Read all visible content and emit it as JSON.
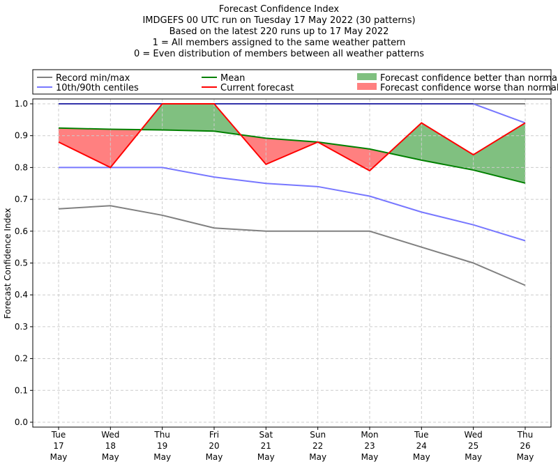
{
  "chart_data": {
    "type": "line",
    "title_lines": [
      "Forecast Confidence Index",
      "IMDGEFS 00 UTC run on Tuesday 17 May 2022 (30 patterns)",
      "Based on the latest 220 runs up to 17 May 2022",
      "1 = All members assigned to the same weather pattern",
      "0 = Even distribution of members between all weather patterns"
    ],
    "ylabel": "Forecast Confidence Index",
    "ylim": [
      0,
      1
    ],
    "yticks": [
      "0.0",
      "0.1",
      "0.2",
      "0.3",
      "0.4",
      "0.5",
      "0.6",
      "0.7",
      "0.8",
      "0.9",
      "1.0"
    ],
    "categories": [
      [
        "Tue",
        "17",
        "May"
      ],
      [
        "Wed",
        "18",
        "May"
      ],
      [
        "Thu",
        "19",
        "May"
      ],
      [
        "Fri",
        "20",
        "May"
      ],
      [
        "Sat",
        "21",
        "May"
      ],
      [
        "Sun",
        "22",
        "May"
      ],
      [
        "Mon",
        "23",
        "May"
      ],
      [
        "Tue",
        "24",
        "May"
      ],
      [
        "Wed",
        "25",
        "May"
      ],
      [
        "Thu",
        "26",
        "May"
      ]
    ],
    "grid": true,
    "legend_position": "top",
    "series": [
      {
        "name": "Record min/max",
        "color": "#808080",
        "min": [
          0.67,
          0.68,
          0.65,
          0.61,
          0.6,
          0.6,
          0.6,
          0.55,
          0.5,
          0.43
        ],
        "max": [
          1,
          1,
          1,
          1,
          1,
          1,
          1,
          1,
          1,
          1
        ]
      },
      {
        "name": "10th/90th centiles",
        "color": "#7777ff",
        "p10": [
          0.8,
          0.8,
          0.8,
          0.77,
          0.75,
          0.74,
          0.71,
          0.66,
          0.62,
          0.57
        ],
        "p90": [
          1,
          1,
          1,
          1,
          1,
          1,
          1,
          1,
          1,
          0.94
        ]
      },
      {
        "name": "Mean",
        "color": "#008000",
        "values": [
          0.924,
          0.92,
          0.918,
          0.914,
          0.892,
          0.88,
          0.858,
          0.823,
          0.792,
          0.751
        ]
      },
      {
        "name": "Current forecast",
        "color": "#ff0000",
        "values": [
          0.88,
          0.8,
          1.0,
          1.0,
          0.81,
          0.88,
          0.79,
          0.94,
          0.84,
          0.94
        ]
      }
    ],
    "fills": [
      {
        "name": "Forecast confidence better than normal",
        "color": "#80c080"
      },
      {
        "name": "Forecast confidence worse than normal",
        "color": "#ff8080"
      }
    ]
  }
}
